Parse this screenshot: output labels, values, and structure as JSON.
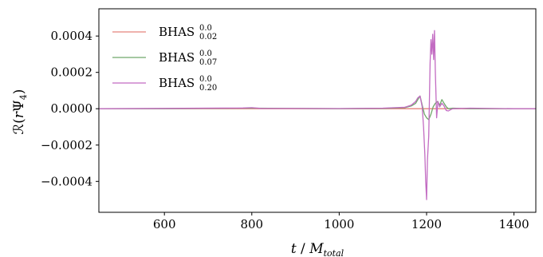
{
  "chart_data": {
    "type": "line",
    "xlabel": "t / M_total",
    "xlabel_parts": {
      "t": "t",
      "slash": " / ",
      "m": "M",
      "sub": "total"
    },
    "ylabel": "R(rΨ4)",
    "ylabel_parts": {
      "R": "ℛ",
      "open": "(",
      "r": "r",
      "psi": "Ψ",
      "sub": "4",
      "close": ")"
    },
    "xlim": [
      450,
      1450
    ],
    "ylim": [
      -0.00057,
      0.00055
    ],
    "x_ticks": [
      600,
      800,
      1000,
      1200,
      1400
    ],
    "x_tick_labels": [
      "600",
      "800",
      "1000",
      "1200",
      "1400"
    ],
    "y_ticks": [
      0.0004,
      0.0002,
      0.0,
      -0.0002,
      -0.0004
    ],
    "y_tick_labels": [
      "0.0004",
      "0.0002",
      "0.0000",
      "−0.0002",
      "−0.0004"
    ],
    "grid": false,
    "legend_position": "top-left",
    "series": [
      {
        "name": "BHAS 0.0 0.02",
        "label_main": "BHAS",
        "label_sup": "0.0",
        "label_sub": "0.02",
        "color": "#e5837c",
        "x": [
          450,
          1450
        ],
        "y": [
          0.0,
          0.0
        ]
      },
      {
        "name": "BHAS 0.0 0.07",
        "label_main": "BHAS",
        "label_sup": "0.0",
        "label_sub": "0.07",
        "color": "#6fa86a",
        "x": [
          450,
          600,
          800,
          1000,
          1100,
          1150,
          1165,
          1175,
          1180,
          1185,
          1190,
          1195,
          1200,
          1205,
          1210,
          1215,
          1220,
          1225,
          1230,
          1235,
          1240,
          1245,
          1250,
          1260,
          1300,
          1400,
          1450
        ],
        "y": [
          0.0,
          0.0,
          3e-06,
          0.0,
          2e-06,
          6e-06,
          1.5e-05,
          3e-05,
          5e-05,
          7e-05,
          2e-05,
          -3e-05,
          -5e-05,
          -6e-05,
          -3e-05,
          1e-05,
          3e-05,
          4e-05,
          2e-05,
          5e-05,
          3e-05,
          1e-05,
          0.0,
          3e-06,
          0.0,
          0.0,
          0.0
        ]
      },
      {
        "name": "BHAS 0.0 0.20",
        "label_main": "BHAS",
        "label_sup": "0.0",
        "label_sub": "0.20",
        "color": "#c26bc2",
        "x": [
          450,
          600,
          780,
          800,
          820,
          1000,
          1100,
          1150,
          1165,
          1175,
          1180,
          1185,
          1190,
          1193,
          1196,
          1198,
          1200,
          1202,
          1205,
          1208,
          1210,
          1212,
          1214,
          1216,
          1218,
          1220,
          1223,
          1226,
          1230,
          1235,
          1240,
          1245,
          1250,
          1255,
          1260,
          1300,
          1400,
          1450
        ],
        "y": [
          0.0,
          2e-06,
          4e-06,
          6e-06,
          2e-06,
          1e-06,
          3e-06,
          8e-06,
          2e-05,
          4e-05,
          6e-05,
          7e-05,
          1e-05,
          -0.0001,
          -0.00025,
          -0.0004,
          -0.0005,
          -0.00028,
          -0.00015,
          0.00025,
          0.00038,
          0.0003,
          0.00041,
          0.00027,
          0.00043,
          0.0002,
          -5e-05,
          4e-05,
          1e-05,
          3e-05,
          1.5e-05,
          -1e-05,
          -1.2e-05,
          -5e-06,
          0.0,
          3e-06,
          0.0,
          0.0
        ]
      }
    ]
  }
}
